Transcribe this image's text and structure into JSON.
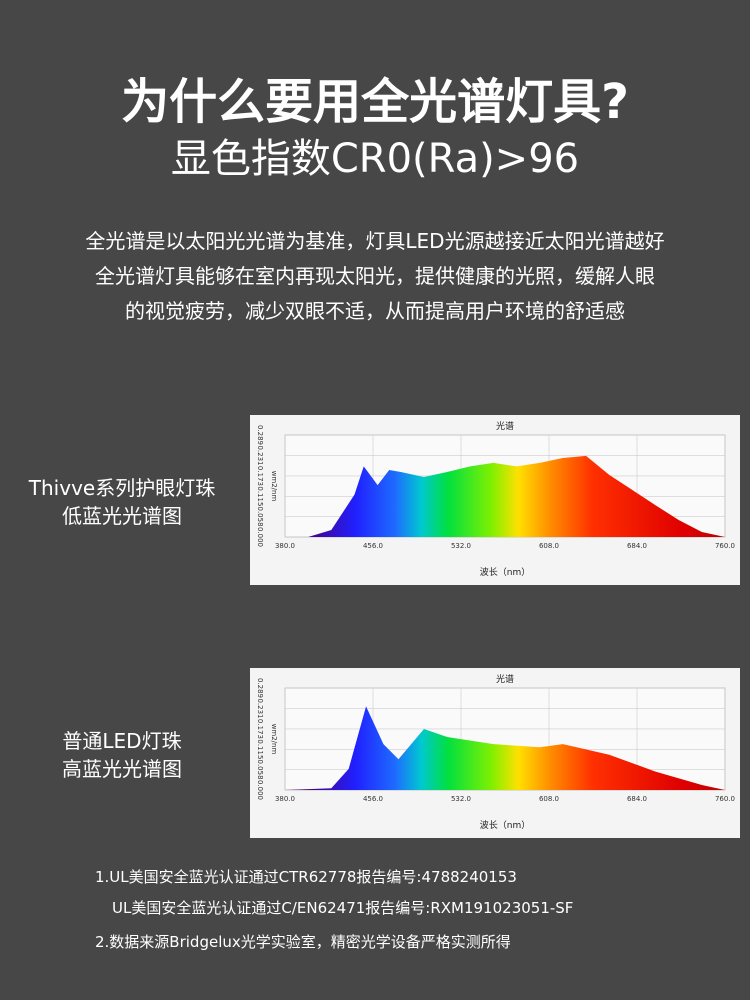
{
  "header": {
    "title": "为什么要用全光谱灯具?",
    "subtitle": "显色指数CR0(Ra)>96"
  },
  "intro": [
    "全光谱是以太阳光光谱为基准，灯具LED光源越接近太阳光谱越好",
    "全光谱灯具能够在室内再现太阳光，提供健康的光照，缓解人眼",
    "的视觉疲劳，减少双眼不适，从而提高用户环境的舒适感"
  ],
  "captions": [
    [
      "Thivve系列护眼灯珠",
      "低蓝光光谱图"
    ],
    [
      "普通LED灯珠",
      "高蓝光光谱图"
    ]
  ],
  "chart_data": [
    {
      "type": "area",
      "title": "光谱",
      "x_label": "波长（nm）",
      "y_label": "wm2/nm",
      "x": [
        380,
        400,
        420,
        440,
        448,
        460,
        470,
        480,
        500,
        520,
        540,
        560,
        580,
        600,
        620,
        640,
        660,
        680,
        700,
        720,
        740,
        760
      ],
      "values": [
        0,
        0,
        0.02,
        0.12,
        0.2,
        0.147,
        0.19,
        0.184,
        0.17,
        0.184,
        0.2,
        0.21,
        0.2,
        0.21,
        0.224,
        0.23,
        0.176,
        0.133,
        0.09,
        0.048,
        0.014,
        0
      ],
      "xlim": [
        380,
        760
      ],
      "ylim": [
        0,
        0.289
      ],
      "xticks": [
        {
          "value": 380,
          "label": "380.0"
        },
        {
          "value": 456,
          "label": "456.0"
        },
        {
          "value": 532,
          "label": "532.0"
        },
        {
          "value": 608,
          "label": "608.0"
        },
        {
          "value": 684,
          "label": "684.0"
        },
        {
          "value": 760,
          "label": "760.0"
        }
      ],
      "yticks": [
        {
          "value": 0,
          "label": "0.000"
        },
        {
          "value": 0.058,
          "label": "0.058"
        },
        {
          "value": 0.115,
          "label": "0.115"
        },
        {
          "value": 0.173,
          "label": "0.173"
        },
        {
          "value": 0.231,
          "label": "0.231"
        },
        {
          "value": 0.289,
          "label": "0.289"
        }
      ],
      "grid": true
    },
    {
      "type": "area",
      "title": "光谱",
      "x_label": "波长（nm）",
      "y_label": "wm2/nm",
      "x": [
        380,
        420,
        435,
        450,
        465,
        478,
        500,
        520,
        560,
        600,
        620,
        660,
        700,
        740,
        760
      ],
      "values": [
        0,
        0.005,
        0.06,
        0.237,
        0.13,
        0.087,
        0.173,
        0.15,
        0.13,
        0.121,
        0.13,
        0.1,
        0.052,
        0.014,
        0
      ],
      "xlim": [
        380,
        760
      ],
      "ylim": [
        0,
        0.289
      ],
      "xticks": [
        {
          "value": 380,
          "label": "380.0"
        },
        {
          "value": 456,
          "label": "456.0"
        },
        {
          "value": 532,
          "label": "532.0"
        },
        {
          "value": 608,
          "label": "608.0"
        },
        {
          "value": 684,
          "label": "684.0"
        },
        {
          "value": 760,
          "label": "760.0"
        }
      ],
      "yticks": [
        {
          "value": 0,
          "label": "0.000"
        },
        {
          "value": 0.058,
          "label": "0.058"
        },
        {
          "value": 0.115,
          "label": "0.115"
        },
        {
          "value": 0.173,
          "label": "0.173"
        },
        {
          "value": 0.231,
          "label": "0.231"
        },
        {
          "value": 0.289,
          "label": "0.289"
        }
      ],
      "grid": true
    }
  ],
  "notes": [
    "1.UL美国安全蓝光认证通过CTR62778报告编号:4788240153",
    "UL美国安全蓝光认证通过C/EN62471报告编号:RXM191023051-SF",
    "2.数据来源Bridgelux光学实验室，精密光学设备严格实测所得"
  ]
}
